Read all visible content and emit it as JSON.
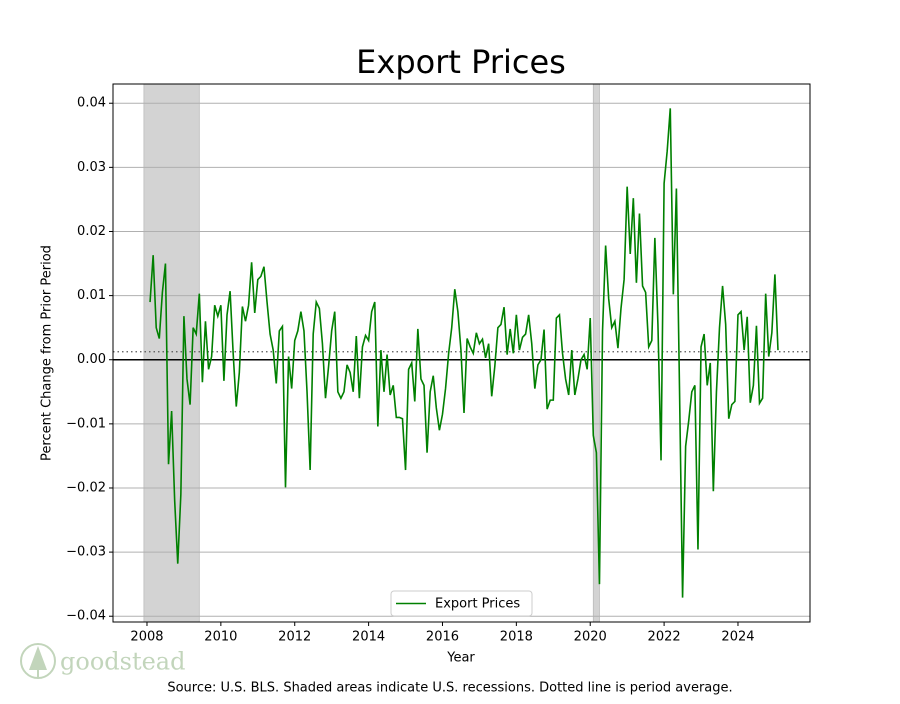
{
  "chart_data": {
    "type": "line",
    "title": "Export Prices",
    "x_label": "Year",
    "y_label": "Percent Change from Prior Period",
    "source": "Source: U.S. BLS. Shaded areas indicate U.S. recessions. Dotted line is period average.",
    "watermark": "goodstead",
    "legend": "lower center",
    "grid": true,
    "xlim": [
      2007.08,
      2025.95
    ],
    "ylim": [
      -0.0409,
      0.043
    ],
    "xticks": [
      2008,
      2010,
      2012,
      2014,
      2016,
      2018,
      2020,
      2022,
      2024
    ],
    "yticks": [
      {
        "value": -0.04,
        "label": "−0.04"
      },
      {
        "value": -0.03,
        "label": "−0.03"
      },
      {
        "value": -0.02,
        "label": "−0.02"
      },
      {
        "value": -0.01,
        "label": "−0.01"
      },
      {
        "value": 0,
        "label": "0.00"
      },
      0.01,
      0.02,
      0.03,
      0.04
    ],
    "recessions": [
      [
        2007.917,
        2009.417
      ],
      [
        2020.083,
        2020.25
      ]
    ],
    "average": 0.00125,
    "x": [
      2008.083,
      2008.167,
      2008.25,
      2008.333,
      2008.417,
      2008.5,
      2008.583,
      2008.667,
      2008.75,
      2008.833,
      2008.917,
      2009,
      2009.083,
      2009.167,
      2009.25,
      2009.333,
      2009.417,
      2009.5,
      2009.583,
      2009.667,
      2009.75,
      2009.833,
      2009.917,
      2010,
      2010.083,
      2010.167,
      2010.25,
      2010.333,
      2010.417,
      2010.5,
      2010.583,
      2010.667,
      2010.75,
      2010.833,
      2010.917,
      2011,
      2011.083,
      2011.167,
      2011.25,
      2011.333,
      2011.417,
      2011.5,
      2011.583,
      2011.667,
      2011.75,
      2011.833,
      2011.917,
      2012,
      2012.083,
      2012.167,
      2012.25,
      2012.333,
      2012.417,
      2012.5,
      2012.583,
      2012.667,
      2012.75,
      2012.833,
      2012.917,
      2013,
      2013.083,
      2013.167,
      2013.25,
      2013.333,
      2013.417,
      2013.5,
      2013.583,
      2013.667,
      2013.75,
      2013.833,
      2013.917,
      2014,
      2014.083,
      2014.167,
      2014.25,
      2014.333,
      2014.417,
      2014.5,
      2014.583,
      2014.667,
      2014.75,
      2014.833,
      2014.917,
      2015,
      2015.083,
      2015.167,
      2015.25,
      2015.333,
      2015.417,
      2015.5,
      2015.583,
      2015.667,
      2015.75,
      2015.833,
      2015.917,
      2016,
      2016.083,
      2016.167,
      2016.25,
      2016.333,
      2016.417,
      2016.5,
      2016.583,
      2016.667,
      2016.75,
      2016.833,
      2016.917,
      2017,
      2017.083,
      2017.167,
      2017.25,
      2017.333,
      2017.417,
      2017.5,
      2017.583,
      2017.667,
      2017.75,
      2017.833,
      2017.917,
      2018,
      2018.083,
      2018.167,
      2018.25,
      2018.333,
      2018.417,
      2018.5,
      2018.583,
      2018.667,
      2018.75,
      2018.833,
      2018.917,
      2019,
      2019.083,
      2019.167,
      2019.25,
      2019.333,
      2019.417,
      2019.5,
      2019.583,
      2019.667,
      2019.75,
      2019.833,
      2019.917,
      2020,
      2020.083,
      2020.167,
      2020.25,
      2020.333,
      2020.417,
      2020.5,
      2020.583,
      2020.667,
      2020.75,
      2020.833,
      2020.917,
      2021,
      2021.083,
      2021.167,
      2021.25,
      2021.333,
      2021.417,
      2021.5,
      2021.583,
      2021.667,
      2021.75,
      2021.833,
      2021.917,
      2022,
      2022.083,
      2022.167,
      2022.25,
      2022.333,
      2022.417,
      2022.5,
      2022.583,
      2022.667,
      2022.75,
      2022.833,
      2022.917,
      2023,
      2023.083,
      2023.167,
      2023.25,
      2023.333,
      2023.417,
      2023.5,
      2023.583,
      2023.667,
      2023.75,
      2023.833,
      2023.917,
      2024,
      2024.083,
      2024.167,
      2024.25,
      2024.333,
      2024.417,
      2024.5,
      2024.583,
      2024.667,
      2024.75,
      2024.833,
      2024.917,
      2025,
      2025.083
    ],
    "series": [
      {
        "name": "Export Prices",
        "color": "#008000",
        "values": [
          0.009,
          0.0163,
          0.005,
          0.0033,
          0.0105,
          0.015,
          -0.0163,
          -0.008,
          -0.022,
          -0.0318,
          -0.021,
          0.0068,
          -0.003,
          -0.007,
          0.005,
          0.004,
          0.0103,
          -0.0035,
          0.006,
          -0.0015,
          0.0005,
          0.0085,
          0.0068,
          0.0085,
          -0.0033,
          0.007,
          0.0107,
          0.001,
          -0.0073,
          -0.002,
          0.0083,
          0.006,
          0.0085,
          0.0152,
          0.0073,
          0.0125,
          0.013,
          0.0145,
          0.009,
          0.004,
          0.0015,
          -0.0037,
          0.0045,
          0.0052,
          -0.0199,
          0.0005,
          -0.0045,
          0.003,
          0.0045,
          0.0075,
          0.0045,
          -0.005,
          -0.0172,
          0.004,
          0.009,
          0.008,
          0.0025,
          -0.006,
          -0.001,
          0.0045,
          0.0075,
          -0.005,
          -0.006,
          -0.005,
          -0.0008,
          -0.002,
          -0.005,
          0.0037,
          -0.006,
          0.002,
          0.0038,
          0.003,
          0.0075,
          0.009,
          -0.0104,
          0.0015,
          -0.005,
          0.0008,
          -0.0055,
          -0.004,
          -0.009,
          -0.009,
          -0.0092,
          -0.0172,
          -0.0015,
          -0.0005,
          -0.0065,
          0.0048,
          -0.003,
          -0.004,
          -0.0145,
          -0.005,
          -0.0025,
          -0.0075,
          -0.011,
          -0.0085,
          -0.0045,
          0.001,
          0.005,
          0.011,
          0.0075,
          0.0015,
          -0.0083,
          0.0033,
          0.002,
          0.001,
          0.0042,
          0.0025,
          0.0032,
          0.0003,
          0.0025,
          -0.0057,
          -0.001,
          0.005,
          0.0055,
          0.0082,
          0.0008,
          0.0048,
          0.001,
          0.007,
          0.0015,
          0.0035,
          0.004,
          0.007,
          0.0025,
          -0.0045,
          -0.0008,
          0.0,
          0.0047,
          -0.0077,
          -0.0063,
          -0.0063,
          0.0065,
          0.007,
          0.001,
          -0.003,
          -0.0055,
          0.0015,
          -0.0055,
          -0.003,
          0.0,
          0.0008,
          -0.0015,
          0.0065,
          -0.0118,
          -0.0145,
          -0.035,
          0.0045,
          0.0178,
          0.0095,
          0.005,
          0.006,
          0.0018,
          0.008,
          0.0125,
          0.027,
          0.0165,
          0.0252,
          0.012,
          0.0228,
          0.0115,
          0.0105,
          0.002,
          0.003,
          0.019,
          0.0055,
          -0.0157,
          0.0275,
          0.0325,
          0.0392,
          0.0102,
          0.0267,
          -0.0045,
          -0.0371,
          -0.0135,
          -0.0095,
          -0.005,
          -0.004,
          -0.0296,
          0.002,
          0.004,
          -0.004,
          -0.0005,
          -0.0205,
          -0.005,
          0.005,
          0.0115,
          0.0055,
          -0.0092,
          -0.007,
          -0.0065,
          0.007,
          0.0075,
          0.0015,
          0.0067,
          -0.0067,
          -0.004,
          0.0053,
          -0.0068,
          -0.006,
          0.0103,
          0.0005,
          0.0042,
          0.0133,
          0.0015
        ]
      }
    ]
  }
}
